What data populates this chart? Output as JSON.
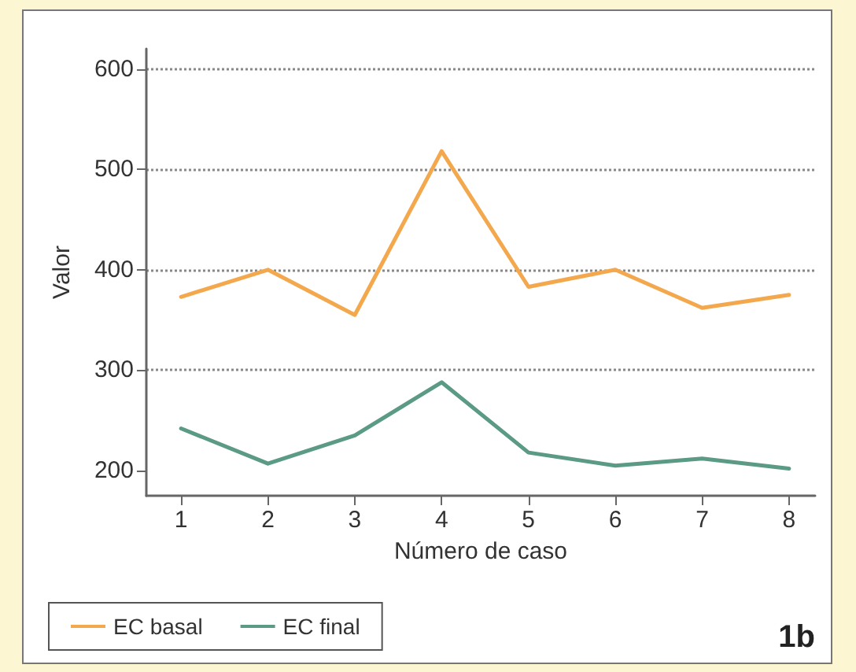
{
  "chart_data": {
    "type": "line",
    "xlabel": "Número de caso",
    "ylabel": "Valor",
    "x": [
      1,
      2,
      3,
      4,
      5,
      6,
      7,
      8
    ],
    "series": [
      {
        "name": "EC basal",
        "color": "#f4a84e",
        "values": [
          373,
          400,
          355,
          518,
          383,
          400,
          362,
          375
        ]
      },
      {
        "name": "EC final",
        "color": "#5b9a84",
        "values": [
          242,
          207,
          235,
          288,
          218,
          205,
          212,
          202
        ]
      }
    ],
    "xlim": [
      0.6,
      8.3
    ],
    "xticks": [
      1,
      2,
      3,
      4,
      5,
      6,
      7,
      8
    ],
    "ylim": [
      175,
      620
    ],
    "yticks": [
      200,
      300,
      400,
      500,
      600
    ],
    "grid": "y",
    "legend": "bottom left",
    "marker": "none",
    "line_style": "solid",
    "annotations": [
      "1b"
    ]
  }
}
